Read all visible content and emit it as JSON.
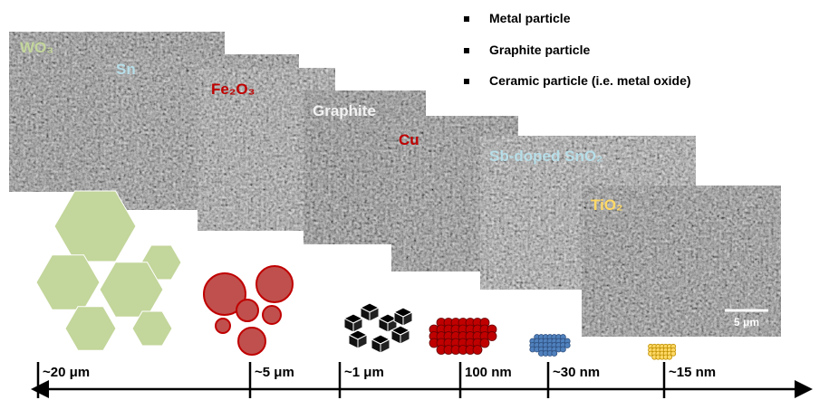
{
  "legend": {
    "items": [
      "Metal particle",
      "Graphite particle",
      "Ceramic particle (i.e. metal oxide)"
    ]
  },
  "images": [
    {
      "label": "WO₃"
    },
    {
      "label": "Sn"
    },
    {
      "label": "Fe₂O₃"
    },
    {
      "label": "Graphite"
    },
    {
      "label": "Cu"
    },
    {
      "label": "Sb-doped SnO₂"
    },
    {
      "label": "TiO₂"
    }
  ],
  "scale_bar": {
    "label": "5 μm"
  },
  "size_axis": {
    "labels": [
      "~20 μm",
      "~5 μm",
      "~1 μm",
      "100 nm",
      "~30 nm",
      "~15 nm"
    ]
  }
}
